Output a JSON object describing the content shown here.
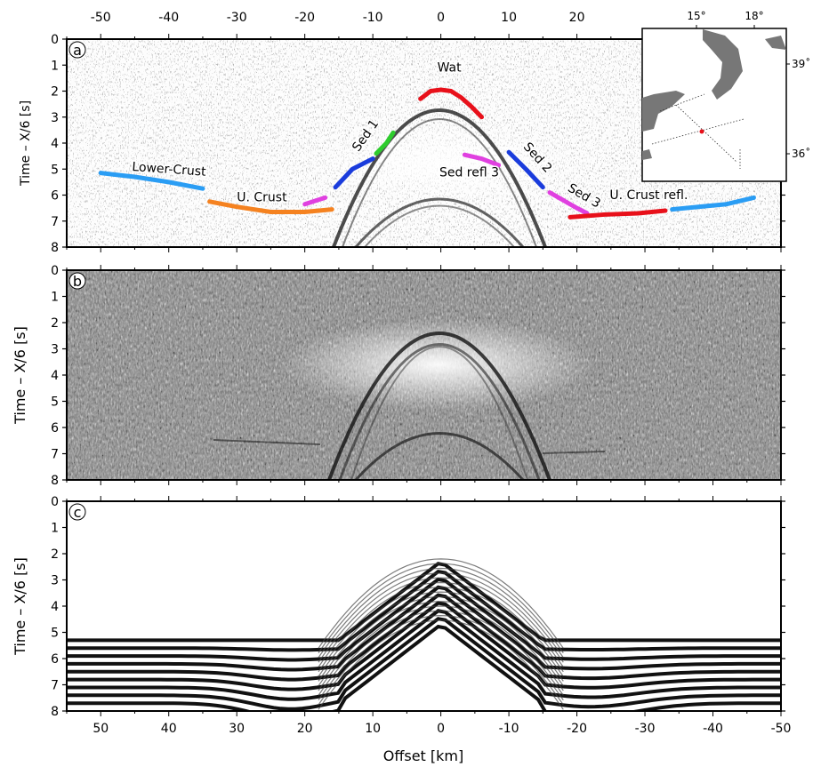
{
  "chart_data": [
    {
      "panel": "a",
      "type": "scatter",
      "xlabel": "",
      "ylabel": "Time – X/6 [s]",
      "xlim": [
        55,
        -50
      ],
      "ylim": [
        8,
        0
      ],
      "x_ticks_top": [
        -50,
        -40,
        -30,
        -20,
        -10,
        0,
        10,
        20
      ],
      "y_ticks": [
        0,
        1,
        2,
        3,
        4,
        5,
        6,
        7,
        8
      ],
      "background": "seismic record section",
      "picks": [
        {
          "name": "Lower-Crust",
          "color": "#2a9df4",
          "x": [
            50,
            45,
            40,
            35
          ],
          "y": [
            5.15,
            5.3,
            5.5,
            5.75
          ]
        },
        {
          "name": "U. Crust",
          "color": "#f58220",
          "x": [
            34,
            30,
            25,
            20,
            16
          ],
          "y": [
            6.25,
            6.45,
            6.65,
            6.65,
            6.55
          ]
        },
        {
          "name": "",
          "color": "#e040e0",
          "x": [
            20,
            17
          ],
          "y": [
            6.35,
            6.1
          ]
        },
        {
          "name": "",
          "color": "#1a3cdc",
          "x": [
            15.5,
            13,
            10
          ],
          "y": [
            5.7,
            5.0,
            4.6
          ]
        },
        {
          "name": "Sed 1",
          "color": "#2ecc2e",
          "x": [
            9.5,
            8,
            7
          ],
          "y": [
            4.4,
            4.0,
            3.6
          ]
        },
        {
          "name": "Wat",
          "color": "#e8101a",
          "x": [
            3,
            1.5,
            0,
            -1.5,
            -3,
            -4.5,
            -6
          ],
          "y": [
            2.3,
            2.0,
            1.95,
            2.0,
            2.25,
            2.6,
            3.0
          ]
        },
        {
          "name": "Sed refl 3",
          "color": "#e040e0",
          "x": [
            -3.5,
            -6,
            -8.5
          ],
          "y": [
            4.45,
            4.6,
            4.85
          ]
        },
        {
          "name": "Sed 2",
          "color": "#1a3cdc",
          "x": [
            -10,
            -12.5,
            -15
          ],
          "y": [
            4.35,
            5.0,
            5.7
          ]
        },
        {
          "name": "Sed 3",
          "color": "#e040e0",
          "x": [
            -16,
            -18,
            -20,
            -21.5
          ],
          "y": [
            5.9,
            6.2,
            6.5,
            6.7
          ]
        },
        {
          "name": "U. Crust refl.",
          "color": "#e8101a",
          "x": [
            -19,
            -24,
            -29,
            -33
          ],
          "y": [
            6.85,
            6.75,
            6.7,
            6.6
          ]
        },
        {
          "name": "",
          "color": "#2a9df4",
          "x": [
            -34,
            -38,
            -42,
            -46
          ],
          "y": [
            6.55,
            6.45,
            6.35,
            6.1
          ]
        }
      ],
      "inset_map": {
        "lon_ticks": [
          "15°",
          "18°"
        ],
        "lat_ticks": [
          "39˚",
          "36˚"
        ]
      }
    },
    {
      "panel": "b",
      "type": "heatmap",
      "xlabel": "",
      "ylabel": "Time – X/6 [s]",
      "xlim": [
        55,
        -50
      ],
      "ylim": [
        8,
        0
      ],
      "y_ticks": [
        0,
        1,
        2,
        3,
        4,
        5,
        6,
        7,
        8
      ],
      "background": "seismic record section"
    },
    {
      "panel": "c",
      "type": "heatmap",
      "xlabel": "Offset [km]",
      "ylabel": "Time – X/6 [s]",
      "xlim": [
        55,
        -50
      ],
      "ylim": [
        8,
        0
      ],
      "x_ticks_bottom": [
        50,
        40,
        30,
        20,
        10,
        0,
        -10,
        -20,
        -30,
        -40,
        -50
      ],
      "y_ticks": [
        0,
        1,
        2,
        3,
        4,
        5,
        6,
        7,
        8
      ],
      "background": "synthetic seismogram"
    }
  ],
  "panel_letters": [
    "a",
    "b",
    "c"
  ]
}
